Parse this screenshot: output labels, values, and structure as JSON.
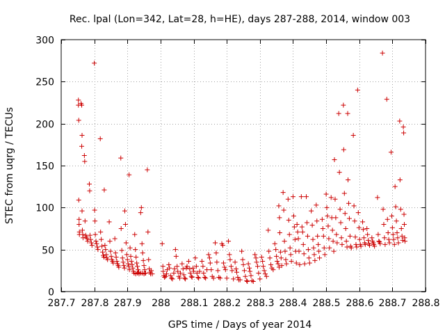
{
  "chart_data": {
    "type": "scatter",
    "title": "Rec. lpal (Lon=342, Lat=28, h=HE), days 287-288, 2014, window 003",
    "xlabel": "GPS time / Days of year 2014",
    "ylabel": "STEC from uqrg / TECUs",
    "xlim": [
      287.7,
      288.8
    ],
    "ylim": [
      0,
      300
    ],
    "x_ticks": [
      287.7,
      287.8,
      287.9,
      288.0,
      288.1,
      288.2,
      288.3,
      288.4,
      288.5,
      288.6,
      288.7,
      288.8
    ],
    "x_tick_labels": [
      "287.7",
      "287.8",
      "287.9",
      "288",
      "288.1",
      "288.2",
      "288.3",
      "288.4",
      "288.5",
      "288.6",
      "288.7",
      "288.8"
    ],
    "y_ticks": [
      0,
      50,
      100,
      150,
      200,
      250,
      300
    ],
    "y_tick_labels": [
      "0",
      "50",
      "100",
      "150",
      "200",
      "250",
      "300"
    ],
    "grid": true,
    "marker": "+",
    "color": "#cc0000",
    "points": [
      [
        287.752,
        228
      ],
      [
        287.752,
        222
      ],
      [
        287.753,
        204
      ],
      [
        287.753,
        109
      ],
      [
        287.754,
        86
      ],
      [
        287.754,
        80
      ],
      [
        287.755,
        71
      ],
      [
        287.755,
        68
      ],
      [
        287.76,
        224
      ],
      [
        287.762,
        222
      ],
      [
        287.763,
        186
      ],
      [
        287.762,
        173
      ],
      [
        287.763,
        96
      ],
      [
        287.764,
        73
      ],
      [
        287.765,
        68
      ],
      [
        287.766,
        64
      ],
      [
        287.77,
        162
      ],
      [
        287.771,
        155
      ],
      [
        287.772,
        84
      ],
      [
        287.774,
        67
      ],
      [
        287.776,
        65
      ],
      [
        287.778,
        63
      ],
      [
        287.78,
        60
      ],
      [
        287.785,
        128
      ],
      [
        287.786,
        120
      ],
      [
        287.787,
        67
      ],
      [
        287.789,
        62
      ],
      [
        287.791,
        58
      ],
      [
        287.793,
        55
      ],
      [
        287.8,
        272
      ],
      [
        287.801,
        97
      ],
      [
        287.802,
        84
      ],
      [
        287.803,
        68
      ],
      [
        287.805,
        60
      ],
      [
        287.807,
        57
      ],
      [
        287.809,
        53
      ],
      [
        287.811,
        50
      ],
      [
        287.818,
        182
      ],
      [
        287.819,
        71
      ],
      [
        287.821,
        62
      ],
      [
        287.823,
        54
      ],
      [
        287.825,
        47
      ],
      [
        287.827,
        43
      ],
      [
        287.829,
        41
      ],
      [
        287.83,
        121
      ],
      [
        287.832,
        55
      ],
      [
        287.834,
        50
      ],
      [
        287.836,
        44
      ],
      [
        287.838,
        40
      ],
      [
        287.84,
        38
      ],
      [
        287.845,
        83
      ],
      [
        287.847,
        60
      ],
      [
        287.849,
        48
      ],
      [
        287.851,
        42
      ],
      [
        287.853,
        38
      ],
      [
        287.855,
        36
      ],
      [
        287.857,
        34
      ],
      [
        287.862,
        63
      ],
      [
        287.864,
        46
      ],
      [
        287.866,
        41
      ],
      [
        287.868,
        36
      ],
      [
        287.87,
        33
      ],
      [
        287.872,
        31
      ],
      [
        287.874,
        29
      ],
      [
        287.88,
        159
      ],
      [
        287.881,
        75
      ],
      [
        287.883,
        49
      ],
      [
        287.885,
        40
      ],
      [
        287.887,
        35
      ],
      [
        287.889,
        31
      ],
      [
        287.891,
        28
      ],
      [
        287.892,
        96
      ],
      [
        287.894,
        80
      ],
      [
        287.896,
        58
      ],
      [
        287.898,
        44
      ],
      [
        287.9,
        38
      ],
      [
        287.902,
        33
      ],
      [
        287.904,
        30
      ],
      [
        287.906,
        26
      ],
      [
        287.905,
        139
      ],
      [
        287.908,
        52
      ],
      [
        287.91,
        42
      ],
      [
        287.912,
        36
      ],
      [
        287.914,
        32
      ],
      [
        287.916,
        28
      ],
      [
        287.918,
        24
      ],
      [
        287.922,
        68
      ],
      [
        287.924,
        50
      ],
      [
        287.926,
        41
      ],
      [
        287.928,
        34
      ],
      [
        287.93,
        30
      ],
      [
        287.932,
        26
      ],
      [
        287.934,
        23
      ],
      [
        287.94,
        94
      ],
      [
        287.942,
        100
      ],
      [
        287.944,
        57
      ],
      [
        287.946,
        46
      ],
      [
        287.948,
        37
      ],
      [
        287.95,
        31
      ],
      [
        287.952,
        26
      ],
      [
        287.954,
        22
      ],
      [
        287.96,
        145
      ],
      [
        287.962,
        71
      ],
      [
        287.964,
        38
      ],
      [
        287.966,
        27
      ],
      [
        287.968,
        23
      ],
      [
        287.97,
        21
      ],
      [
        287.972,
        25
      ],
      [
        287.975,
        21
      ],
      [
        287.92,
        22
      ],
      [
        287.925,
        21
      ],
      [
        287.93,
        22
      ],
      [
        287.935,
        21
      ],
      [
        287.94,
        22
      ],
      [
        287.945,
        22
      ],
      [
        287.95,
        21
      ],
      [
        287.955,
        22
      ],
      [
        288.005,
        57
      ],
      [
        288.007,
        30
      ],
      [
        288.008,
        24
      ],
      [
        288.01,
        19
      ],
      [
        288.012,
        17
      ],
      [
        288.015,
        18
      ],
      [
        288.018,
        21
      ],
      [
        288.02,
        26
      ],
      [
        288.025,
        32
      ],
      [
        288.027,
        28
      ],
      [
        288.03,
        19
      ],
      [
        288.033,
        16
      ],
      [
        288.036,
        15
      ],
      [
        288.04,
        22
      ],
      [
        288.042,
        27
      ],
      [
        288.045,
        50
      ],
      [
        288.047,
        42
      ],
      [
        288.05,
        30
      ],
      [
        288.052,
        24
      ],
      [
        288.055,
        18
      ],
      [
        288.058,
        16
      ],
      [
        288.06,
        22
      ],
      [
        288.065,
        33
      ],
      [
        288.068,
        27
      ],
      [
        288.07,
        20
      ],
      [
        288.073,
        16
      ],
      [
        288.075,
        15
      ],
      [
        288.078,
        28
      ],
      [
        288.08,
        30
      ],
      [
        288.085,
        36
      ],
      [
        288.088,
        27
      ],
      [
        288.09,
        22
      ],
      [
        288.093,
        18
      ],
      [
        288.095,
        17
      ],
      [
        288.098,
        28
      ],
      [
        288.1,
        24
      ],
      [
        288.105,
        40
      ],
      [
        288.108,
        30
      ],
      [
        288.11,
        22
      ],
      [
        288.113,
        17
      ],
      [
        288.115,
        16
      ],
      [
        288.118,
        24
      ],
      [
        288.125,
        36
      ],
      [
        288.128,
        30
      ],
      [
        288.13,
        22
      ],
      [
        288.133,
        17
      ],
      [
        288.136,
        16
      ],
      [
        288.14,
        26
      ],
      [
        288.145,
        44
      ],
      [
        288.148,
        40
      ],
      [
        288.15,
        34
      ],
      [
        288.153,
        26
      ],
      [
        288.156,
        18
      ],
      [
        288.16,
        16
      ],
      [
        288.165,
        58
      ],
      [
        288.168,
        46
      ],
      [
        288.17,
        35
      ],
      [
        288.173,
        25
      ],
      [
        288.176,
        17
      ],
      [
        288.18,
        16
      ],
      [
        288.185,
        57
      ],
      [
        288.188,
        55
      ],
      [
        288.19,
        34
      ],
      [
        288.193,
        29
      ],
      [
        288.196,
        26
      ],
      [
        288.2,
        16
      ],
      [
        288.205,
        60
      ],
      [
        288.208,
        44
      ],
      [
        288.21,
        38
      ],
      [
        288.213,
        30
      ],
      [
        288.216,
        25
      ],
      [
        288.22,
        15
      ],
      [
        288.225,
        35
      ],
      [
        288.228,
        27
      ],
      [
        288.23,
        23
      ],
      [
        288.233,
        17
      ],
      [
        288.236,
        14
      ],
      [
        288.24,
        14
      ],
      [
        288.245,
        48
      ],
      [
        288.248,
        38
      ],
      [
        288.25,
        32
      ],
      [
        288.253,
        25
      ],
      [
        288.256,
        18
      ],
      [
        288.26,
        13
      ],
      [
        288.262,
        12
      ],
      [
        288.265,
        33
      ],
      [
        288.268,
        28
      ],
      [
        288.27,
        24
      ],
      [
        288.273,
        19
      ],
      [
        288.276,
        13
      ],
      [
        288.28,
        12
      ],
      [
        288.285,
        44
      ],
      [
        288.288,
        40
      ],
      [
        288.29,
        35
      ],
      [
        288.293,
        30
      ],
      [
        288.296,
        22
      ],
      [
        288.3,
        15
      ],
      [
        288.305,
        41
      ],
      [
        288.308,
        36
      ],
      [
        288.31,
        30
      ],
      [
        288.313,
        25
      ],
      [
        288.316,
        21
      ],
      [
        288.32,
        18
      ],
      [
        288.325,
        73
      ],
      [
        288.327,
        48
      ],
      [
        288.33,
        40
      ],
      [
        288.333,
        32
      ],
      [
        288.336,
        28
      ],
      [
        288.34,
        26
      ],
      [
        288.345,
        57
      ],
      [
        288.348,
        50
      ],
      [
        288.35,
        42
      ],
      [
        288.352,
        36
      ],
      [
        288.355,
        33
      ],
      [
        288.358,
        29
      ],
      [
        288.357,
        102
      ],
      [
        288.359,
        88
      ],
      [
        288.36,
        70
      ],
      [
        288.362,
        47
      ],
      [
        288.364,
        40
      ],
      [
        288.366,
        31
      ],
      [
        288.37,
        118
      ],
      [
        288.372,
        97
      ],
      [
        288.374,
        60
      ],
      [
        288.376,
        48
      ],
      [
        288.378,
        38
      ],
      [
        288.38,
        33
      ],
      [
        288.385,
        110
      ],
      [
        288.387,
        85
      ],
      [
        288.389,
        68
      ],
      [
        288.391,
        52
      ],
      [
        288.393,
        44
      ],
      [
        288.395,
        36
      ],
      [
        288.4,
        113
      ],
      [
        288.402,
        90
      ],
      [
        288.404,
        77
      ],
      [
        288.406,
        62
      ],
      [
        288.408,
        48
      ],
      [
        288.41,
        34
      ],
      [
        288.412,
        80
      ],
      [
        288.414,
        71
      ],
      [
        288.416,
        63
      ],
      [
        288.418,
        48
      ],
      [
        288.42,
        32
      ],
      [
        288.425,
        113
      ],
      [
        288.427,
        77
      ],
      [
        288.429,
        71
      ],
      [
        288.431,
        56
      ],
      [
        288.433,
        45
      ],
      [
        288.435,
        33
      ],
      [
        288.44,
        113
      ],
      [
        288.442,
        82
      ],
      [
        288.444,
        66
      ],
      [
        288.446,
        50
      ],
      [
        288.448,
        40
      ],
      [
        288.45,
        34
      ],
      [
        288.455,
        96
      ],
      [
        288.458,
        79
      ],
      [
        288.46,
        62
      ],
      [
        288.462,
        52
      ],
      [
        288.464,
        44
      ],
      [
        288.466,
        37
      ],
      [
        288.47,
        103
      ],
      [
        288.472,
        84
      ],
      [
        288.474,
        66
      ],
      [
        288.476,
        56
      ],
      [
        288.478,
        48
      ],
      [
        288.48,
        40
      ],
      [
        288.488,
        86
      ],
      [
        288.49,
        75
      ],
      [
        288.492,
        66
      ],
      [
        288.494,
        52
      ],
      [
        288.496,
        44
      ],
      [
        288.5,
        116
      ],
      [
        288.502,
        100
      ],
      [
        288.504,
        90
      ],
      [
        288.506,
        78
      ],
      [
        288.508,
        63
      ],
      [
        288.51,
        52
      ],
      [
        288.515,
        112
      ],
      [
        288.517,
        88
      ],
      [
        288.519,
        73
      ],
      [
        288.521,
        60
      ],
      [
        288.523,
        48
      ],
      [
        288.525,
        157
      ],
      [
        288.527,
        110
      ],
      [
        288.529,
        88
      ],
      [
        288.531,
        68
      ],
      [
        288.533,
        58
      ],
      [
        288.538,
        212
      ],
      [
        288.54,
        142
      ],
      [
        288.542,
        98
      ],
      [
        288.544,
        82
      ],
      [
        288.546,
        64
      ],
      [
        288.548,
        56
      ],
      [
        288.552,
        222
      ],
      [
        288.553,
        169
      ],
      [
        288.555,
        117
      ],
      [
        288.557,
        93
      ],
      [
        288.559,
        75
      ],
      [
        288.561,
        60
      ],
      [
        288.563,
        53
      ],
      [
        288.565,
        212
      ],
      [
        288.566,
        133
      ],
      [
        288.568,
        105
      ],
      [
        288.57,
        87
      ],
      [
        288.572,
        66
      ],
      [
        288.574,
        54
      ],
      [
        288.576,
        52
      ],
      [
        288.582,
        186
      ],
      [
        288.584,
        102
      ],
      [
        288.586,
        84
      ],
      [
        288.588,
        65
      ],
      [
        288.59,
        56
      ],
      [
        288.592,
        53
      ],
      [
        288.595,
        240
      ],
      [
        288.597,
        94
      ],
      [
        288.599,
        76
      ],
      [
        288.601,
        62
      ],
      [
        288.603,
        56
      ],
      [
        288.605,
        54
      ],
      [
        288.61,
        83
      ],
      [
        288.612,
        74
      ],
      [
        288.614,
        64
      ],
      [
        288.616,
        58
      ],
      [
        288.618,
        56
      ],
      [
        288.623,
        75
      ],
      [
        288.625,
        68
      ],
      [
        288.627,
        61
      ],
      [
        288.629,
        57
      ],
      [
        288.631,
        55
      ],
      [
        288.638,
        64
      ],
      [
        288.64,
        60
      ],
      [
        288.642,
        58
      ],
      [
        288.644,
        56
      ],
      [
        288.646,
        54
      ],
      [
        288.655,
        112
      ],
      [
        288.657,
        68
      ],
      [
        288.659,
        60
      ],
      [
        288.661,
        59
      ],
      [
        288.663,
        57
      ],
      [
        288.67,
        284
      ],
      [
        288.672,
        98
      ],
      [
        288.674,
        80
      ],
      [
        288.676,
        64
      ],
      [
        288.678,
        56
      ],
      [
        288.683,
        229
      ],
      [
        288.685,
        86
      ],
      [
        288.687,
        70
      ],
      [
        288.689,
        62
      ],
      [
        288.691,
        58
      ],
      [
        288.696,
        166
      ],
      [
        288.698,
        90
      ],
      [
        288.7,
        76
      ],
      [
        288.702,
        68
      ],
      [
        288.704,
        62
      ],
      [
        288.706,
        56
      ],
      [
        288.708,
        125
      ],
      [
        288.71,
        101
      ],
      [
        288.712,
        84
      ],
      [
        288.714,
        70
      ],
      [
        288.716,
        64
      ],
      [
        288.718,
        58
      ],
      [
        288.722,
        203
      ],
      [
        288.723,
        133
      ],
      [
        288.725,
        98
      ],
      [
        288.727,
        75
      ],
      [
        288.729,
        66
      ],
      [
        288.731,
        61
      ],
      [
        288.733,
        196
      ],
      [
        288.734,
        189
      ],
      [
        288.735,
        92
      ],
      [
        288.736,
        80
      ],
      [
        288.737,
        64
      ],
      [
        288.738,
        60
      ]
    ]
  }
}
